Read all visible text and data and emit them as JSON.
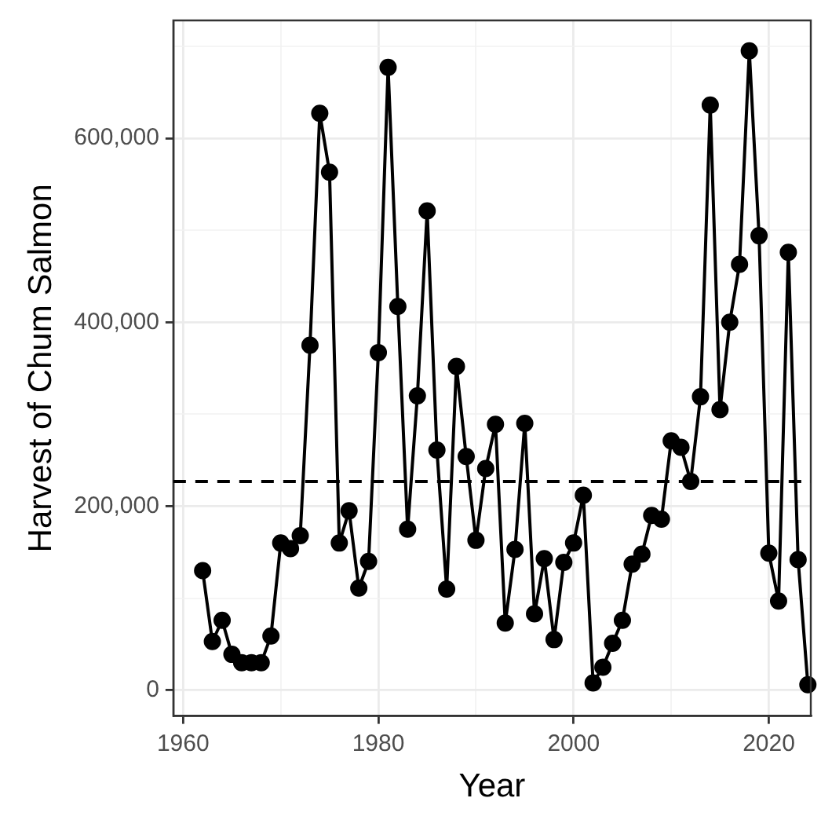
{
  "chart_data": {
    "type": "line",
    "xlabel": "Year",
    "ylabel": "Harvest of Chum Salmon",
    "x": [
      1962,
      1963,
      1964,
      1965,
      1966,
      1967,
      1968,
      1969,
      1970,
      1971,
      1972,
      1973,
      1974,
      1975,
      1976,
      1977,
      1978,
      1979,
      1980,
      1981,
      1982,
      1983,
      1984,
      1985,
      1986,
      1987,
      1988,
      1989,
      1990,
      1991,
      1992,
      1993,
      1994,
      1995,
      1996,
      1997,
      1998,
      1999,
      2000,
      2001,
      2002,
      2003,
      2004,
      2005,
      2006,
      2007,
      2008,
      2009,
      2010,
      2011,
      2012,
      2013,
      2014,
      2015,
      2016,
      2017,
      2018,
      2019,
      2020,
      2021,
      2022,
      2023,
      2024
    ],
    "series": [
      {
        "color": "#000000",
        "values": [
          130000,
          53000,
          76000,
          39000,
          30000,
          30000,
          30000,
          59000,
          160000,
          154000,
          168000,
          375000,
          627000,
          563000,
          160000,
          195000,
          111000,
          140000,
          367000,
          677000,
          417000,
          175000,
          320000,
          521000,
          261000,
          110000,
          352000,
          254000,
          163000,
          241000,
          289000,
          73000,
          153000,
          290000,
          83000,
          143000,
          55000,
          139000,
          160000,
          212000,
          8000,
          25000,
          51000,
          76000,
          137000,
          148000,
          190000,
          186000,
          271000,
          264000,
          227000,
          319000,
          636000,
          305000,
          400000,
          463000,
          695000,
          494000,
          149000,
          97000,
          476000,
          142000,
          6000
        ]
      }
    ],
    "xlim": [
      1959,
      2024.3
    ],
    "ylim": [
      -28000,
      728000
    ],
    "xticks": [
      1960,
      {
        "value": 1970,
        "label": null
      },
      1980,
      {
        "value": 1990,
        "label": null
      },
      2000,
      {
        "value": 2010,
        "label": null
      },
      2020
    ],
    "yticks": [
      {
        "value": 0,
        "label": "0"
      },
      {
        "value": 100000,
        "label": null
      },
      {
        "value": 200000,
        "label": "200,000"
      },
      {
        "value": 300000,
        "label": null
      },
      {
        "value": 400000,
        "label": "400,000"
      },
      {
        "value": 500000,
        "label": null
      },
      {
        "value": 600000,
        "label": "600,000"
      },
      {
        "value": 700000,
        "label": null
      }
    ],
    "ref_lines": [
      {
        "axis": "y",
        "value": 227000,
        "color": "#000000",
        "line_style": "dashed"
      }
    ],
    "grid": true,
    "legend": false,
    "marker": "circle",
    "line_style": "solid"
  }
}
